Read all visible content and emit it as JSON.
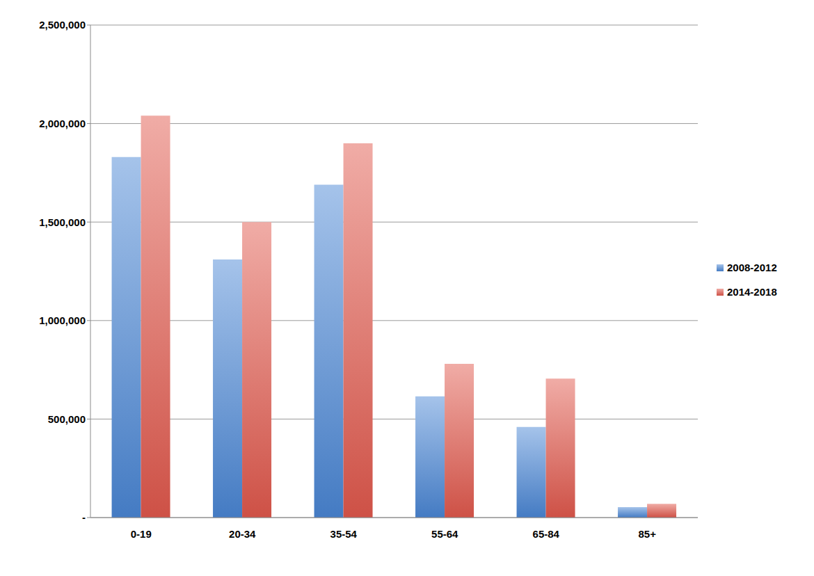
{
  "chart_data": {
    "type": "bar",
    "categories": [
      "0-19",
      "20-34",
      "35-54",
      "55-64",
      "65-84",
      "85+"
    ],
    "series": [
      {
        "name": "2008-2012",
        "color": "#4a86d4",
        "values": [
          1830000,
          1310000,
          1690000,
          615000,
          460000,
          53000
        ]
      },
      {
        "name": "2014-2018",
        "color": "#e0584c",
        "values": [
          2040000,
          1500000,
          1900000,
          780000,
          705000,
          70000
        ]
      }
    ],
    "ylim": [
      0,
      2500000
    ],
    "yticks": [
      {
        "value": 0,
        "label": "-"
      },
      {
        "value": 500000,
        "label": "500,000"
      },
      {
        "value": 1000000,
        "label": "1,000,000"
      },
      {
        "value": 1500000,
        "label": "1,500,000"
      },
      {
        "value": 2000000,
        "label": "2,000,000"
      },
      {
        "value": 2500000,
        "label": "2,500,000"
      }
    ],
    "grid": true,
    "legend": "right"
  }
}
